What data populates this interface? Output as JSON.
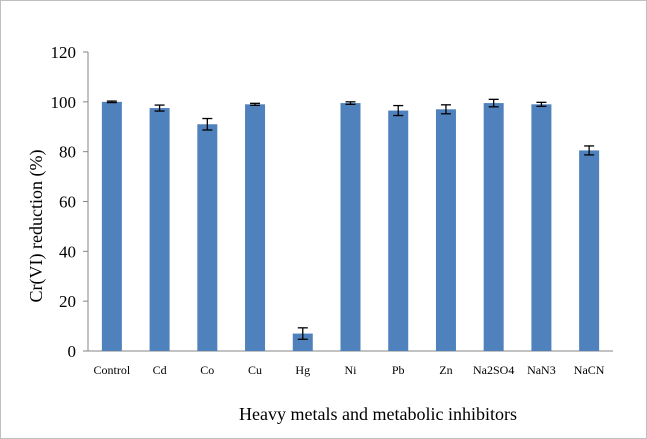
{
  "chart_data": {
    "type": "bar",
    "title": "",
    "xlabel": "Heavy metals and metabolic inhibitors",
    "ylabel": "Cr(VI) reduction (%)",
    "ylim": [
      0,
      120
    ],
    "yticks": [
      0,
      20,
      40,
      60,
      80,
      100,
      120
    ],
    "categories": [
      "Control",
      "Cd",
      "Co",
      "Cu",
      "Hg",
      "Ni",
      "Pb",
      "Zn",
      "Na2SO4",
      "NaN3",
      "NaCN"
    ],
    "values": [
      100,
      97.5,
      91,
      99,
      7,
      99.5,
      96.5,
      97,
      99.5,
      99,
      80.5
    ],
    "errors": [
      0.3,
      1.2,
      2.3,
      0.4,
      2.3,
      0.5,
      2.0,
      1.8,
      1.5,
      0.8,
      1.8
    ],
    "bar_color": "#4f81bd",
    "grid": false,
    "legend": "none"
  }
}
